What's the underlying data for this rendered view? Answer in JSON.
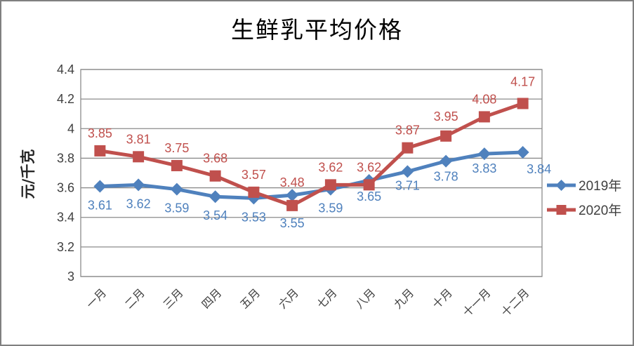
{
  "chart_data": {
    "type": "line",
    "title": "生鲜乳平均价格",
    "ylabel": "元/千克",
    "xlabel": "",
    "ylim": [
      3,
      4.4
    ],
    "yticks": [
      "4.4",
      "4.2",
      "4",
      "3.8",
      "3.6",
      "3.4",
      "3.2",
      "3"
    ],
    "grid": "horizontal",
    "legend_position": "right",
    "axis_color": "#8c8c8c",
    "tick_label_color": "#3f3f3f",
    "legend_text_color": "#404040",
    "categories": [
      "一月",
      "二月",
      "三月",
      "四月",
      "五月",
      "六月",
      "七月",
      "八月",
      "九月",
      "十月",
      "十一月",
      "十二月"
    ],
    "series": [
      {
        "name": "2019年",
        "color": "#4F81BD",
        "marker": "diamond",
        "values": [
          3.61,
          3.62,
          3.59,
          3.54,
          3.53,
          3.55,
          3.59,
          3.65,
          3.71,
          3.78,
          3.83,
          3.84
        ],
        "label_position": "below",
        "label_offset": {
          "dx": 0,
          "dy": 33
        },
        "label_overrides": {
          "5": {
            "dy": 46
          },
          "7": {
            "dy": 29
          },
          "8": {
            "dy": 26
          },
          "9": {
            "dy": 28
          },
          "10": {
            "dy": 27
          },
          "11": {
            "dx": 23,
            "dy": 30
          }
        }
      },
      {
        "name": "2020年",
        "color": "#C0504D",
        "marker": "square",
        "values": [
          3.85,
          3.81,
          3.75,
          3.68,
          3.57,
          3.48,
          3.62,
          3.62,
          3.87,
          3.95,
          4.08,
          4.17
        ],
        "label_position": "above",
        "label_offset": {
          "dx": 0,
          "dy": -19
        },
        "label_overrides": {
          "5": {
            "dy": -27
          },
          "9": {
            "dy": -22
          },
          "11": {
            "dy": -25
          }
        }
      }
    ]
  }
}
